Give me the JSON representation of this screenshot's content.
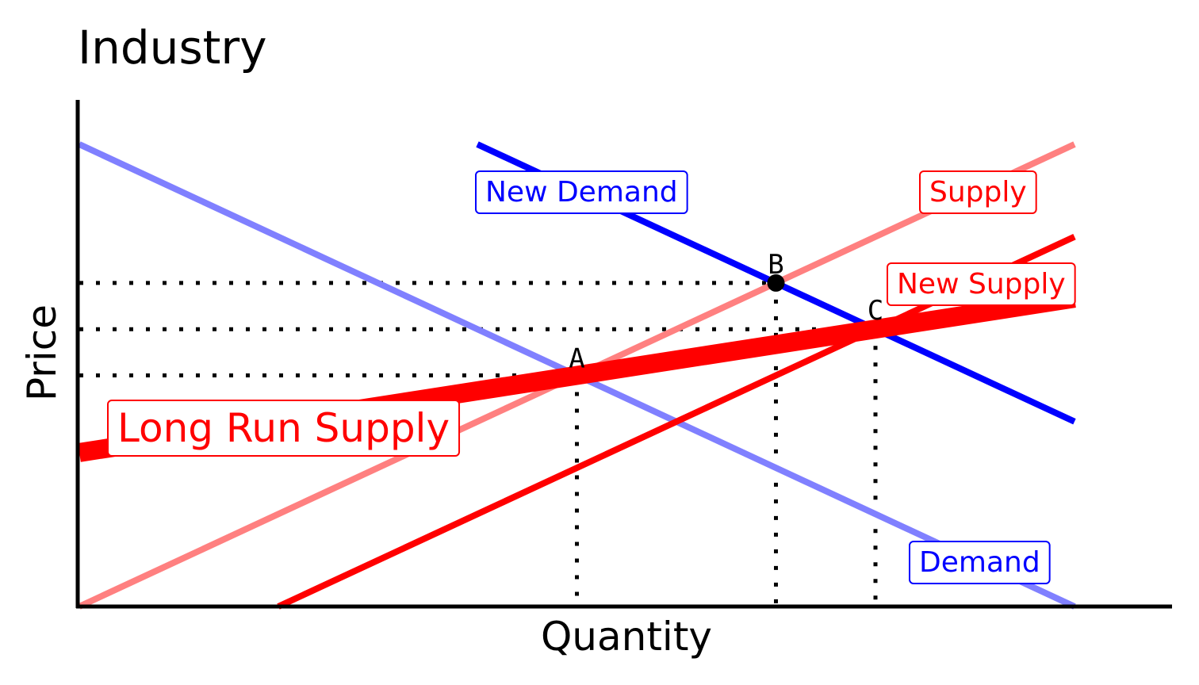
{
  "chart_data": {
    "type": "line",
    "title": "Industry",
    "xlabel": "Quantity",
    "ylabel": "Price",
    "xlim": [
      0,
      11
    ],
    "ylim": [
      0,
      10
    ],
    "ticks_shown": false,
    "grid": false,
    "series": [
      {
        "name": "Demand",
        "color": "#8080ff",
        "x": [
          0,
          10
        ],
        "y": [
          10,
          0
        ]
      },
      {
        "name": "New Demand",
        "color": "#0000ff",
        "x": [
          4,
          10
        ],
        "y": [
          10,
          4
        ]
      },
      {
        "name": "Supply",
        "color": "#ff8080",
        "x": [
          0,
          10
        ],
        "y": [
          0,
          10
        ]
      },
      {
        "name": "New Supply",
        "color": "#ff0000",
        "x": [
          2,
          10
        ],
        "y": [
          0,
          8
        ]
      },
      {
        "name": "Long Run Supply",
        "color": "#ff0000",
        "x": [
          0,
          10
        ],
        "y": [
          3.33,
          6.67
        ]
      }
    ],
    "points": [
      {
        "label": "A",
        "x": 5,
        "y": 5,
        "marker": false
      },
      {
        "label": "B",
        "x": 7,
        "y": 7,
        "marker": true
      },
      {
        "label": "C",
        "x": 8,
        "y": 6,
        "marker": false
      }
    ],
    "reference_lines": "dotted lines from points A, B and C to both axes"
  }
}
